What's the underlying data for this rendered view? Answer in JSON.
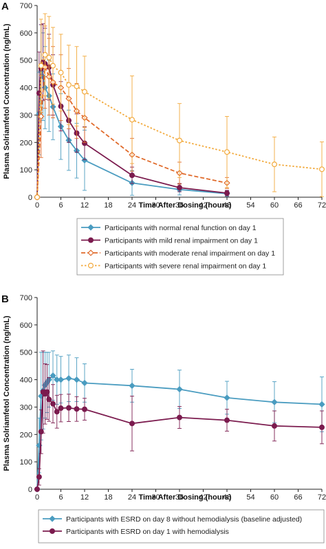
{
  "chart_data": [
    {
      "panel": "A",
      "type": "line",
      "xlabel": "Time After Dosing (hours)",
      "ylabel": "Plasma Solriamfetol Concentration (ng/mL)",
      "xlim": [
        0,
        72
      ],
      "ylim": [
        0,
        700
      ],
      "xticks": [
        0,
        6,
        12,
        18,
        24,
        30,
        36,
        42,
        48,
        54,
        60,
        66,
        72
      ],
      "yticks": [
        0,
        100,
        200,
        300,
        400,
        500,
        600,
        700
      ],
      "grid": false,
      "legend": "bottom",
      "series": [
        {
          "name": "Participants with normal renal function on day 1",
          "color": "#4a9cc0",
          "marker": "diamond",
          "dash": "solid",
          "x": [
            0,
            0.5,
            1,
            1.5,
            2,
            3,
            4,
            6,
            8,
            10,
            12,
            24,
            36,
            48
          ],
          "y": [
            0,
            305,
            460,
            440,
            400,
            370,
            330,
            258,
            208,
            170,
            135,
            52,
            28,
            13
          ],
          "err": [
            0,
            150,
            170,
            160,
            150,
            130,
            120,
            120,
            110,
            100,
            110,
            45,
            20,
            10
          ]
        },
        {
          "name": "Participants with mild renal impairment on day 1",
          "color": "#7b1b4e",
          "marker": "circle",
          "dash": "solid",
          "x": [
            0,
            0.5,
            1,
            1.5,
            2,
            3,
            4,
            6,
            8,
            10,
            12,
            24,
            36,
            48
          ],
          "y": [
            0,
            380,
            470,
            493,
            487,
            475,
            410,
            332,
            280,
            234,
            197,
            80,
            35,
            15
          ],
          "err": [
            0,
            150,
            160,
            140,
            130,
            120,
            110,
            90,
            80,
            70,
            60,
            30,
            15,
            10
          ]
        },
        {
          "name": "Participants with moderate renal impairment on day 1",
          "color": "#e06a2a",
          "marker": "diamond-open",
          "dash": "dash",
          "x": [
            0,
            1,
            2,
            3,
            4,
            6,
            8,
            10,
            12,
            24,
            36,
            48
          ],
          "y": [
            0,
            295,
            475,
            440,
            420,
            400,
            360,
            315,
            290,
            155,
            88,
            52
          ],
          "err": [
            0,
            150,
            150,
            140,
            130,
            120,
            110,
            100,
            90,
            60,
            40,
            20
          ]
        },
        {
          "name": "Participants with severe renal impairment on day 1",
          "color": "#f2a93b",
          "marker": "circle-open",
          "dash": "dot",
          "x": [
            0,
            1,
            2,
            3,
            4,
            6,
            8,
            10,
            12,
            24,
            36,
            48,
            60,
            72
          ],
          "y": [
            0,
            480,
            520,
            510,
            480,
            455,
            410,
            405,
            385,
            283,
            207,
            165,
            120,
            102
          ],
          "err": [
            0,
            170,
            150,
            150,
            140,
            140,
            145,
            145,
            130,
            160,
            135,
            130,
            100,
            100
          ]
        }
      ]
    },
    {
      "panel": "B",
      "type": "line",
      "xlabel": "Time After Dosing (hours)",
      "ylabel": "Plasma Solriamfetol Concentration (ng/mL)",
      "xlim": [
        0,
        72
      ],
      "ylim": [
        0,
        700
      ],
      "xticks": [
        0,
        6,
        12,
        18,
        24,
        30,
        36,
        42,
        48,
        54,
        60,
        66,
        72
      ],
      "yticks": [
        0,
        100,
        200,
        300,
        400,
        500,
        600,
        700
      ],
      "grid": false,
      "legend": "bottom",
      "series": [
        {
          "name": "Participants with ESRD on day 8 without hemodialysis (baseline adjusted)",
          "color": "#4a9cc0",
          "marker": "diamond",
          "dash": "solid",
          "x": [
            0,
            0.5,
            1,
            1.5,
            2,
            2.5,
            3,
            4,
            5,
            6,
            8,
            10,
            12,
            24,
            36,
            48,
            60,
            72
          ],
          "y": [
            0,
            160,
            340,
            360,
            380,
            390,
            400,
            415,
            400,
            400,
            405,
            400,
            388,
            378,
            365,
            334,
            318,
            310
          ],
          "err": [
            0,
            100,
            160,
            140,
            120,
            110,
            100,
            90,
            90,
            85,
            85,
            80,
            70,
            60,
            70,
            60,
            75,
            100
          ]
        },
        {
          "name": "Participants with ESRD on day 1 with hemodialysis",
          "color": "#7b1b4e",
          "marker": "circle",
          "dash": "solid",
          "x": [
            0,
            0.5,
            1,
            1.5,
            2,
            2.5,
            3,
            4,
            5,
            6,
            8,
            10,
            12,
            24,
            36,
            48,
            60,
            72
          ],
          "y": [
            0,
            45,
            210,
            355,
            348,
            355,
            328,
            312,
            283,
            296,
            297,
            293,
            292,
            240,
            262,
            252,
            231,
            226
          ],
          "err": [
            0,
            30,
            80,
            150,
            110,
            100,
            80,
            70,
            60,
            50,
            50,
            45,
            40,
            100,
            40,
            40,
            55,
            60
          ]
        }
      ]
    }
  ],
  "panels": {
    "a_letter": "A",
    "b_letter": "B"
  }
}
